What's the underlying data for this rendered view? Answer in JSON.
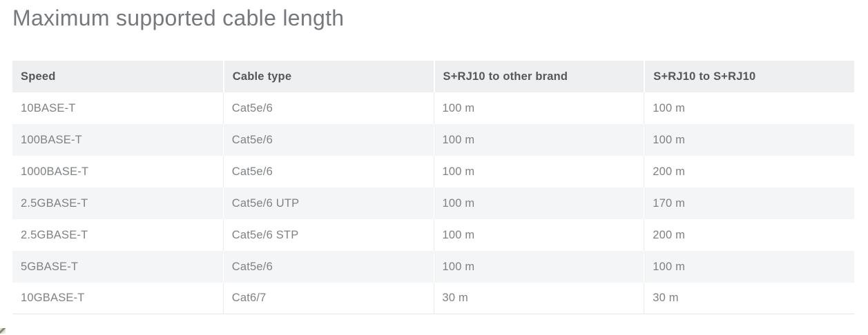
{
  "title": "Maximum supported cable length",
  "table": {
    "columns": [
      "Speed",
      "Cable type",
      "S+RJ10 to other brand",
      "S+RJ10 to S+RJ10"
    ],
    "rows": [
      [
        "10BASE-T",
        "Cat5e/6",
        "100 m",
        "100 m"
      ],
      [
        "100BASE-T",
        "Cat5e/6",
        "100 m",
        "100 m"
      ],
      [
        "1000BASE-T",
        "Cat5e/6",
        "100 m",
        "200 m"
      ],
      [
        "2.5GBASE-T",
        "Cat5e/6 UTP",
        "100 m",
        "170 m"
      ],
      [
        "2.5GBASE-T",
        "Cat5e/6 STP",
        "100 m",
        "200 m"
      ],
      [
        "5GBASE-T",
        "Cat5e/6",
        "100 m",
        "100 m"
      ],
      [
        "10GBASE-T",
        "Cat6/7",
        "30 m",
        "30 m"
      ]
    ]
  },
  "colors": {
    "title_text": "#75787c",
    "header_bg": "#edeff0",
    "header_text": "#54585b",
    "stripe_bg": "#f4f5f6",
    "row_bg": "#ffffff",
    "body_text": "#7e8285",
    "divider": "#e9ebec",
    "bottom_border": "#e4e6e7"
  }
}
